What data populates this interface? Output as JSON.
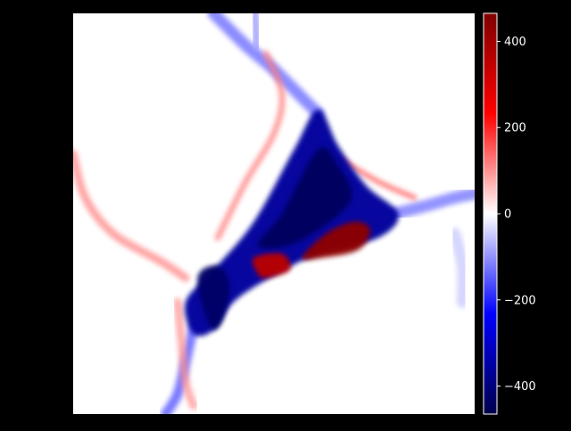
{
  "chart_data": {
    "type": "heatmap",
    "colormap": "seismic",
    "colors": {
      "background": "#000000",
      "text": "#ffffff",
      "negative_extreme": "#00004c",
      "negative": "#0000ff",
      "zero": "#ffffff",
      "positive": "#ff0000",
      "positive_extreme": "#7f0000"
    },
    "colorbar": {
      "min": -465,
      "max": 465,
      "ticks": [
        -400,
        -200,
        0,
        200,
        400
      ],
      "tick_labels": [
        "−400",
        "−200",
        "0",
        "200",
        "400"
      ]
    },
    "regions": [
      {
        "kind": "blob",
        "points": [
          [
            0.61,
            0.24
          ],
          [
            0.55,
            0.34
          ],
          [
            0.45,
            0.52
          ],
          [
            0.35,
            0.64
          ],
          [
            0.28,
            0.72
          ],
          [
            0.3,
            0.8
          ],
          [
            0.35,
            0.79
          ],
          [
            0.4,
            0.72
          ],
          [
            0.49,
            0.66
          ],
          [
            0.61,
            0.6
          ],
          [
            0.76,
            0.56
          ],
          [
            0.81,
            0.5
          ],
          [
            0.73,
            0.43
          ],
          [
            0.66,
            0.33
          ]
        ],
        "value": -360
      },
      {
        "kind": "blob",
        "points": [
          [
            0.61,
            0.34
          ],
          [
            0.52,
            0.5
          ],
          [
            0.46,
            0.58
          ],
          [
            0.56,
            0.57
          ],
          [
            0.69,
            0.47
          ],
          [
            0.66,
            0.38
          ]
        ],
        "value": -440
      },
      {
        "kind": "blob",
        "points": [
          [
            0.31,
            0.66
          ],
          [
            0.34,
            0.78
          ],
          [
            0.37,
            0.77
          ],
          [
            0.39,
            0.68
          ],
          [
            0.36,
            0.63
          ]
        ],
        "value": -430
      },
      {
        "kind": "blob",
        "points": [
          [
            0.63,
            0.55
          ],
          [
            0.7,
            0.52
          ],
          [
            0.74,
            0.54
          ],
          [
            0.71,
            0.59
          ],
          [
            0.62,
            0.61
          ],
          [
            0.57,
            0.61
          ]
        ],
        "value": 440
      },
      {
        "kind": "blob",
        "points": [
          [
            0.45,
            0.61
          ],
          [
            0.52,
            0.6
          ],
          [
            0.54,
            0.64
          ],
          [
            0.48,
            0.66
          ],
          [
            0.46,
            0.65
          ]
        ],
        "value": 360
      },
      {
        "kind": "line",
        "points": [
          [
            0.35,
            0.0
          ],
          [
            0.43,
            0.08
          ],
          [
            0.5,
            0.14
          ],
          [
            0.56,
            0.2
          ],
          [
            0.61,
            0.25
          ]
        ],
        "value": -140,
        "width": 0.03
      },
      {
        "kind": "line",
        "points": [
          [
            0.3,
            0.78
          ],
          [
            0.28,
            0.87
          ],
          [
            0.26,
            0.95
          ],
          [
            0.23,
            1.0
          ]
        ],
        "value": -160,
        "width": 0.025
      },
      {
        "kind": "line",
        "points": [
          [
            0.8,
            0.5
          ],
          [
            0.88,
            0.48
          ],
          [
            0.95,
            0.46
          ],
          [
            1.0,
            0.45
          ]
        ],
        "value": -130,
        "width": 0.03
      },
      {
        "kind": "line",
        "points": [
          [
            0.0,
            0.35
          ],
          [
            0.03,
            0.46
          ],
          [
            0.1,
            0.55
          ],
          [
            0.22,
            0.62
          ],
          [
            0.28,
            0.66
          ]
        ],
        "value": 110,
        "width": 0.02
      },
      {
        "kind": "line",
        "points": [
          [
            0.48,
            0.1
          ],
          [
            0.52,
            0.2
          ],
          [
            0.5,
            0.3
          ],
          [
            0.43,
            0.42
          ],
          [
            0.36,
            0.56
          ]
        ],
        "value": 120,
        "width": 0.015
      },
      {
        "kind": "line",
        "points": [
          [
            0.66,
            0.36
          ],
          [
            0.76,
            0.42
          ],
          [
            0.85,
            0.46
          ]
        ],
        "value": 160,
        "width": 0.012
      },
      {
        "kind": "line",
        "points": [
          [
            0.26,
            0.72
          ],
          [
            0.27,
            0.82
          ],
          [
            0.28,
            0.92
          ],
          [
            0.3,
            0.98
          ]
        ],
        "value": 100,
        "width": 0.02
      },
      {
        "kind": "line",
        "points": [
          [
            0.45,
            0.0
          ],
          [
            0.46,
            0.08
          ]
        ],
        "value": -90,
        "width": 0.03
      },
      {
        "kind": "line",
        "points": [
          [
            0.95,
            0.55
          ],
          [
            0.97,
            0.63
          ],
          [
            0.97,
            0.72
          ]
        ],
        "value": -50,
        "width": 0.03
      }
    ]
  }
}
